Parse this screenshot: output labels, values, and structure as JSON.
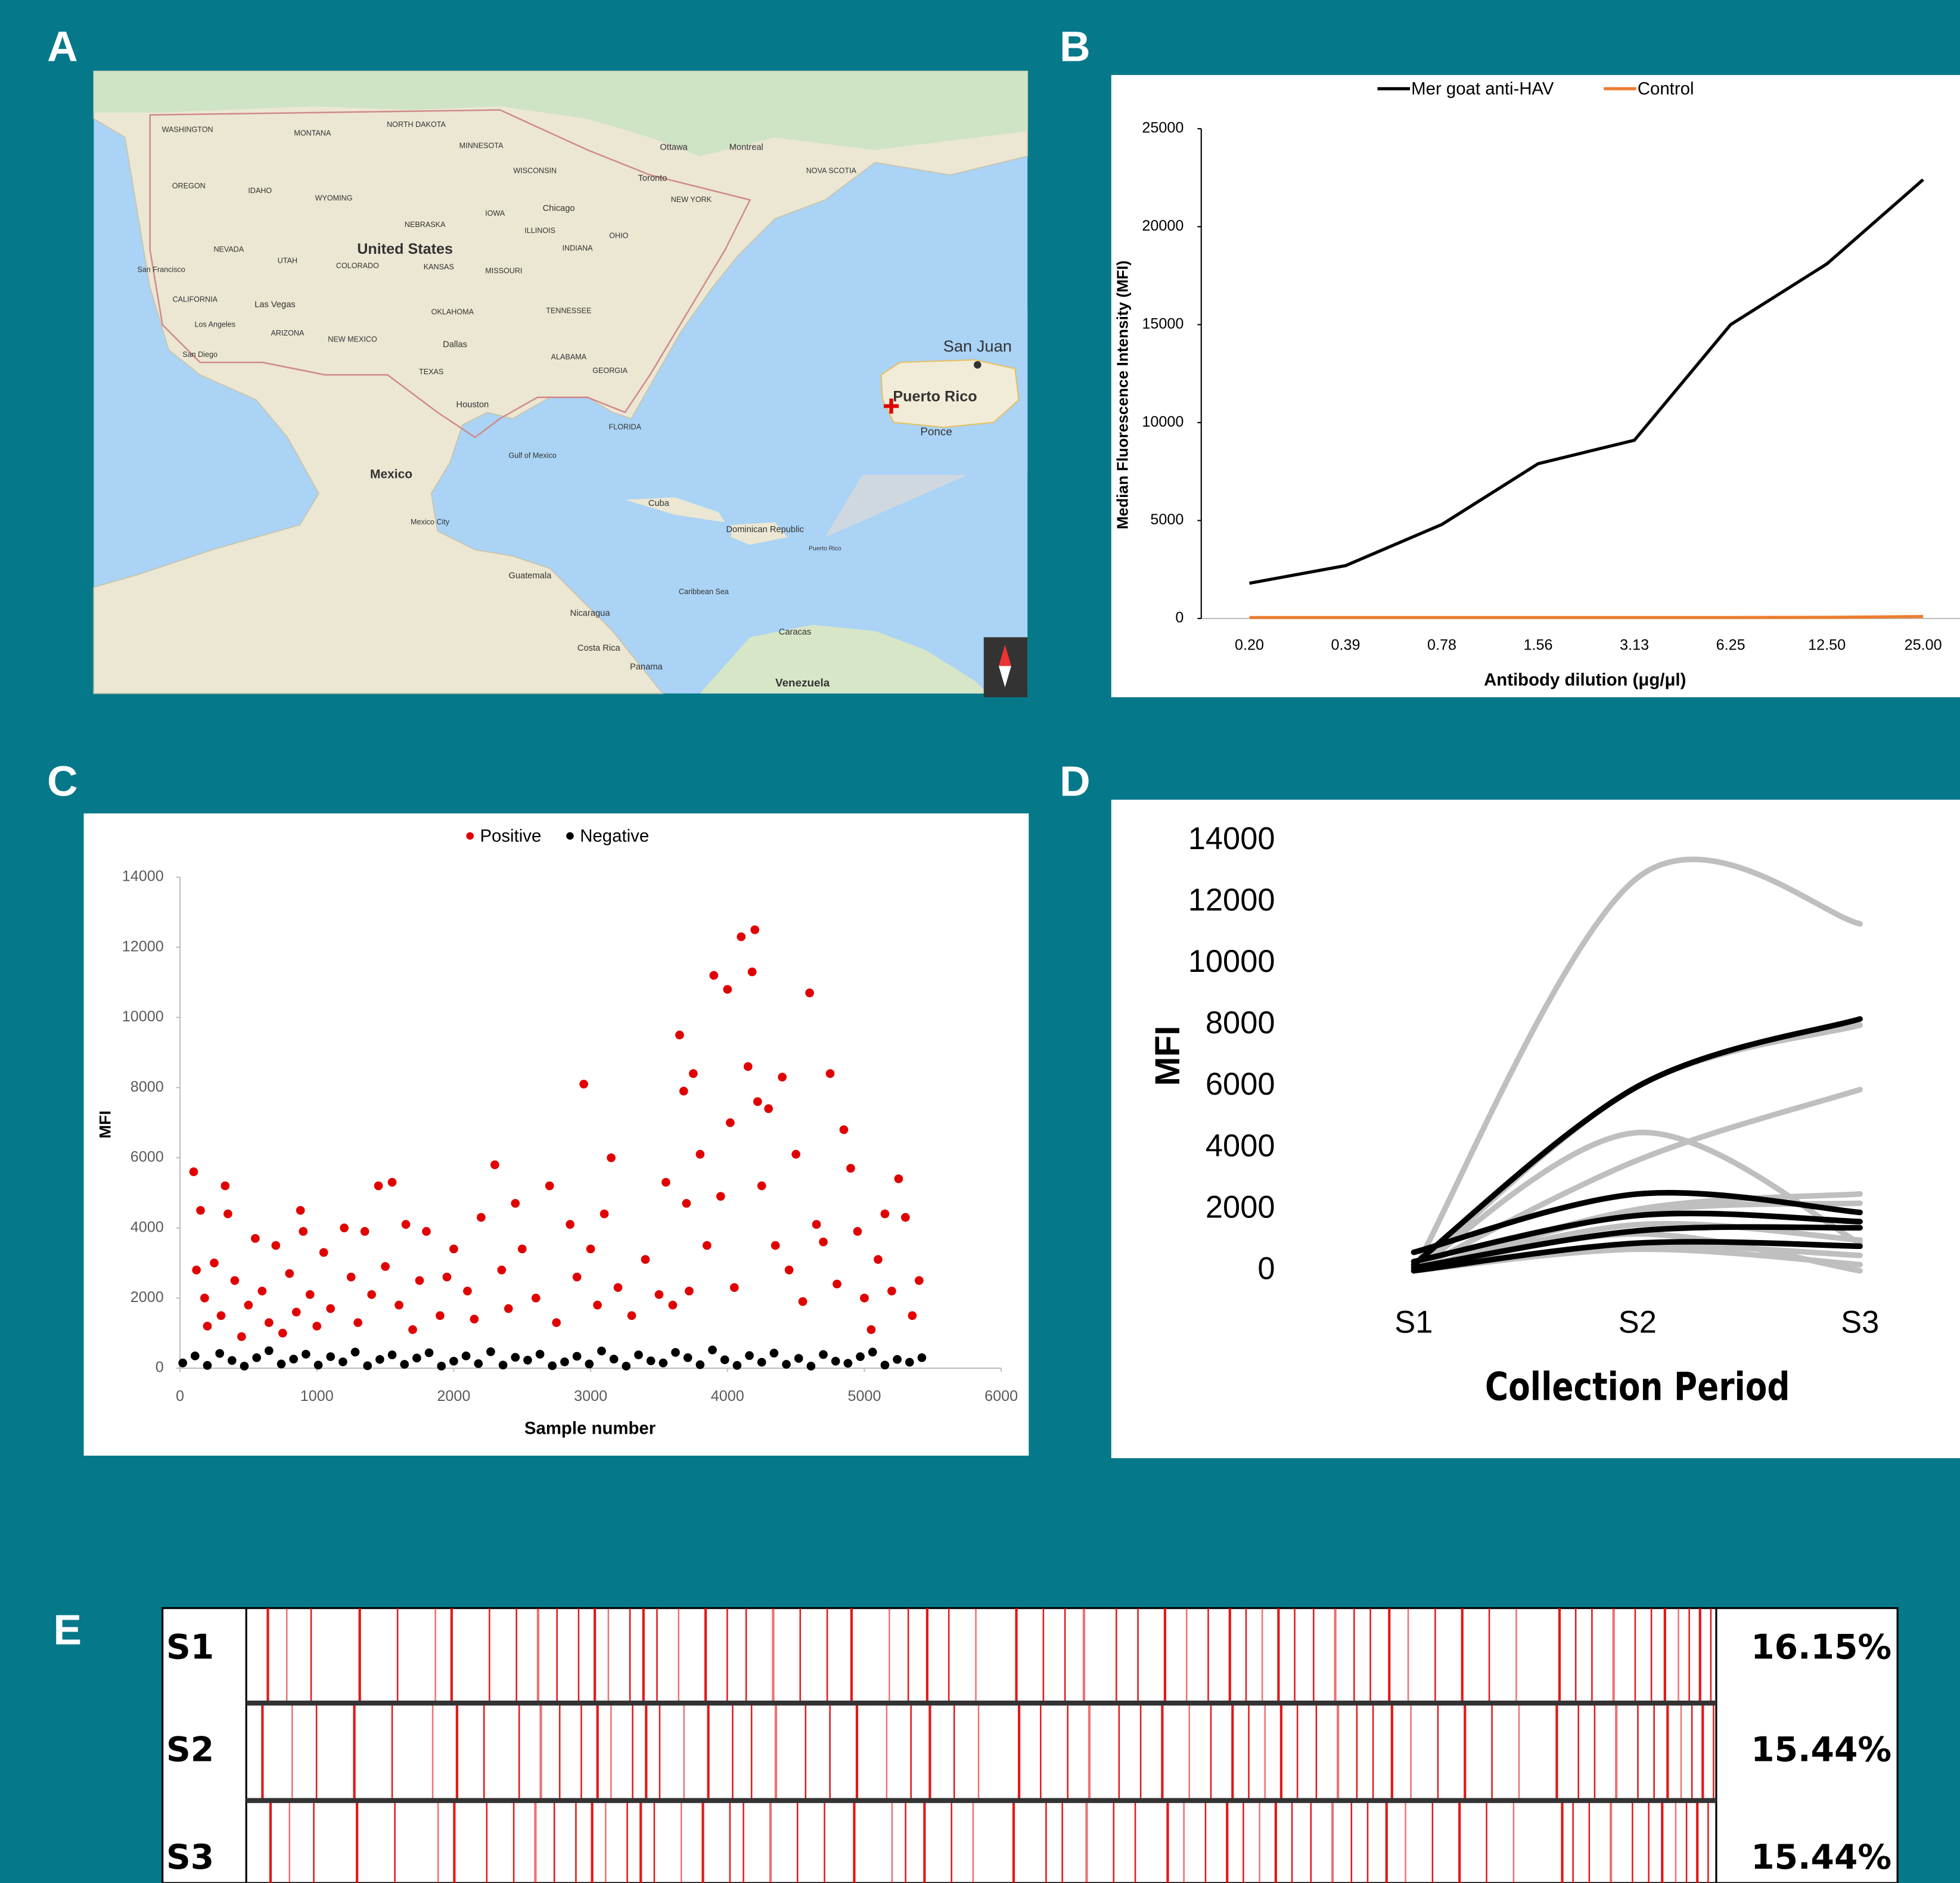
{
  "panel_labels": [
    "A",
    "B",
    "C",
    "D",
    "E"
  ],
  "map": {
    "labels": [
      "United States",
      "Mexico",
      "Cuba",
      "Dominican Republic",
      "Puerto Rico",
      "San Juan",
      "Puerto Rico",
      "Ponce",
      "Gulf of Mexico",
      "Caribbean Sea",
      "Guatemala",
      "Nicaragua",
      "Costa Rica",
      "Panama",
      "Caracas",
      "Venezuela",
      "Houston",
      "Dallas",
      "Mexico City",
      "Chicago",
      "Toronto",
      "Ottawa",
      "Montreal",
      "San Francisco",
      "Los Angeles",
      "San Diego",
      "Las Vegas",
      "WASHINGTON",
      "MONTANA",
      "NORTH DAKOTA",
      "OREGON",
      "IDAHO",
      "WYOMING",
      "NEVADA",
      "UTAH",
      "COLORADO",
      "KANSAS",
      "CALIFORNIA",
      "ARIZONA",
      "NEW MEXICO",
      "TEXAS",
      "OKLAHOMA",
      "MISSOURI",
      "IOWA",
      "NEBRASKA",
      "MINNESOTA",
      "WISCONSIN",
      "ILLINOIS",
      "INDIANA",
      "OHIO",
      "TENNESSEE",
      "ALABAMA",
      "GEORGIA",
      "FLORIDA",
      "NEW YORK",
      "NOVA SCOTIA"
    ]
  },
  "chart_data": [
    {
      "type": "line",
      "categories": [
        "0.20",
        "0.39",
        "0.78",
        "1.56",
        "3.13",
        "6.25",
        "12.50",
        "25.00"
      ],
      "series": [
        {
          "name": "Mer goat anti-HAV",
          "color": "#000000",
          "values": [
            1800,
            2700,
            4800,
            7900,
            9100,
            15000,
            18100,
            22400
          ]
        },
        {
          "name": "Control",
          "color": "#ed7d31",
          "values": [
            50,
            50,
            50,
            50,
            50,
            50,
            60,
            100
          ]
        }
      ],
      "ylim": [
        0,
        25000
      ],
      "yticks": [
        0,
        5000,
        10000,
        15000,
        20000,
        25000
      ],
      "y_label": "Median Fluorescence Intensity (MFI)",
      "x_label": "Antibody dilution (μg/μl)"
    },
    {
      "type": "scatter",
      "x_label": "Sample number",
      "y_label": "MFI",
      "xlim": [
        0,
        6000
      ],
      "xticks": [
        0,
        1000,
        2000,
        3000,
        4000,
        5000,
        6000
      ],
      "ylim": [
        0,
        14000
      ],
      "yticks": [
        0,
        2000,
        4000,
        6000,
        8000,
        10000,
        12000,
        14000
      ],
      "series": [
        {
          "name": "Positive",
          "color": "#e00000",
          "x": [
            100,
            120,
            150,
            180,
            200,
            250,
            300,
            330,
            350,
            400,
            450,
            500,
            550,
            600,
            650,
            700,
            750,
            800,
            850,
            880,
            900,
            950,
            1000,
            1050,
            1100,
            1200,
            1250,
            1300,
            1350,
            1400,
            1450,
            1500,
            1550,
            1600,
            1650,
            1700,
            1750,
            1800,
            1900,
            1950,
            2000,
            2100,
            2150,
            2200,
            2300,
            2350,
            2400,
            2450,
            2500,
            2600,
            2700,
            2750,
            2850,
            2900,
            2950,
            3000,
            3050,
            3100,
            3150,
            3200,
            3300,
            3400,
            3500,
            3550,
            3600,
            3650,
            3680,
            3700,
            3720,
            3750,
            3800,
            3850,
            3900,
            3950,
            4000,
            4020,
            4050,
            4100,
            4150,
            4180,
            4200,
            4220,
            4250,
            4300,
            4350,
            4400,
            4450,
            4500,
            4550,
            4600,
            4650,
            4700,
            4750,
            4800,
            4850,
            4900,
            4950,
            5000,
            5050,
            5100,
            5150,
            5200,
            5250,
            5300,
            5350,
            5400
          ],
          "values": [
            5600,
            2800,
            4500,
            2000,
            1200,
            3000,
            1500,
            5200,
            4400,
            2500,
            900,
            1800,
            3700,
            2200,
            1300,
            3500,
            1000,
            2700,
            1600,
            4500,
            3900,
            2100,
            1200,
            3300,
            1700,
            4000,
            2600,
            1300,
            3900,
            2100,
            5200,
            2900,
            5300,
            1800,
            4100,
            1100,
            2500,
            3900,
            1500,
            2600,
            3400,
            2200,
            1400,
            4300,
            5800,
            2800,
            1700,
            4700,
            3400,
            2000,
            5200,
            1300,
            4100,
            2600,
            8100,
            3400,
            1800,
            4400,
            6000,
            2300,
            1500,
            3100,
            2100,
            5300,
            1800,
            9500,
            7900,
            4700,
            2200,
            8400,
            6100,
            3500,
            11200,
            4900,
            10800,
            7000,
            2300,
            12300,
            8600,
            11300,
            12500,
            7600,
            5200,
            7400,
            3500,
            8300,
            2800,
            6100,
            1900,
            10700,
            4100,
            3600,
            8400,
            2400,
            6800,
            5700,
            3900,
            2000,
            1100,
            3100,
            4400,
            2200,
            5400,
            4300,
            1500,
            2500
          ]
        },
        {
          "name": "Negative",
          "color": "#000000",
          "x": [
            20,
            110,
            200,
            290,
            380,
            470,
            560,
            650,
            740,
            830,
            920,
            1010,
            1100,
            1190,
            1280,
            1370,
            1460,
            1550,
            1640,
            1730,
            1820,
            1910,
            2000,
            2090,
            2180,
            2270,
            2360,
            2450,
            2540,
            2630,
            2720,
            2810,
            2900,
            2990,
            3080,
            3170,
            3260,
            3350,
            3440,
            3530,
            3620,
            3710,
            3800,
            3890,
            3980,
            4070,
            4160,
            4250,
            4340,
            4430,
            4520,
            4610,
            4700,
            4790,
            4880,
            4970,
            5060,
            5150,
            5240,
            5330,
            5420
          ],
          "values": [
            150,
            350,
            80,
            420,
            220,
            60,
            300,
            500,
            120,
            260,
            400,
            90,
            330,
            180,
            460,
            70,
            250,
            380,
            110,
            290,
            440,
            60,
            200,
            350,
            130,
            470,
            90,
            310,
            230,
            400,
            70,
            180,
            340,
            120,
            490,
            260,
            60,
            380,
            210,
            150,
            450,
            300,
            100,
            520,
            240,
            80,
            360,
            170,
            430,
            110,
            280,
            60,
            390,
            200,
            140,
            330,
            460,
            90,
            250,
            170,
            300
          ]
        }
      ]
    },
    {
      "type": "smooth-line",
      "categories": [
        "S1",
        "S2",
        "S3"
      ],
      "x_label": "Collection Period",
      "y_label": "MFI",
      "ylim": [
        0,
        14000
      ],
      "yticks": [
        0,
        2000,
        4000,
        6000,
        8000,
        10000,
        12000,
        14000
      ],
      "series": [
        {
          "color": "#bfbfbf",
          "values": [
            0,
            12800,
            11300
          ]
        },
        {
          "color": "#bfbfbf",
          "values": [
            0,
            6000,
            8000
          ]
        },
        {
          "color": "#bfbfbf",
          "values": [
            0,
            4500,
            900
          ]
        },
        {
          "color": "#bfbfbf",
          "values": [
            0,
            3600,
            5900
          ]
        },
        {
          "color": "#bfbfbf",
          "values": [
            0,
            2000,
            2500
          ]
        },
        {
          "color": "#bfbfbf",
          "values": [
            0,
            1900,
            2200
          ]
        },
        {
          "color": "#bfbfbf",
          "values": [
            0,
            1500,
            1000
          ]
        },
        {
          "color": "#bfbfbf",
          "values": [
            0,
            800,
            500
          ]
        },
        {
          "color": "#bfbfbf",
          "values": [
            0,
            1200,
            0
          ]
        },
        {
          "color": "#bfbfbf",
          "values": [
            0,
            700,
            200
          ]
        },
        {
          "color": "#000000",
          "values": [
            200,
            6000,
            8200
          ]
        },
        {
          "color": "#000000",
          "values": [
            600,
            2500,
            1900
          ]
        },
        {
          "color": "#000000",
          "values": [
            300,
            1800,
            1600
          ]
        },
        {
          "color": "#000000",
          "values": [
            100,
            1300,
            1400
          ]
        },
        {
          "color": "#000000",
          "values": [
            0,
            900,
            800
          ]
        }
      ]
    },
    {
      "type": "strip",
      "categories": [
        "S1",
        "S2",
        "S3"
      ],
      "values": [
        16.15,
        15.44,
        15.44
      ],
      "value_labels": [
        "16.15%",
        "15.44%",
        "15.44%"
      ],
      "xlim": [
        0,
        5440
      ],
      "color": "#e00000",
      "positives": [
        [
          80,
          150,
          240,
          420,
          560,
          700,
          760,
          900,
          1000,
          1080,
          1150,
          1230,
          1290,
          1340,
          1420,
          1470,
          1520,
          1600,
          1700,
          1780,
          1850,
          1950,
          2050,
          2150,
          2240,
          2380,
          2450,
          2520,
          2600,
          2700,
          2850,
          2950,
          3030,
          3100,
          3220,
          3300,
          3400,
          3480,
          3560,
          3640,
          3700,
          3760,
          3820,
          3880,
          3950,
          4030,
          4100,
          4160,
          4230,
          4300,
          4400,
          4500,
          4600,
          4700,
          4860,
          4920,
          4980,
          5060,
          5140,
          5200,
          5250,
          5300,
          5340,
          5380,
          5420
        ],
        [
          60,
          170,
          260,
          400,
          540,
          690,
          780,
          880,
          1010,
          1090,
          1160,
          1240,
          1300,
          1350,
          1430,
          1480,
          1530,
          1620,
          1710,
          1800,
          1870,
          1960,
          2070,
          2160,
          2260,
          2370,
          2460,
          2530,
          2620,
          2710,
          2860,
          2940,
          3040,
          3120,
          3230,
          3310,
          3390,
          3490,
          3570,
          3650,
          3710,
          3770,
          3830,
          3890,
          3960,
          4040,
          4110,
          4170,
          4240,
          4310,
          4410,
          4510,
          4610,
          4710,
          4850,
          4930,
          4990,
          5070,
          5150,
          5210,
          5260,
          5310,
          5350,
          5390,
          5430
        ],
        [
          90,
          160,
          250,
          410,
          550,
          710,
          770,
          890,
          990,
          1070,
          1140,
          1220,
          1280,
          1330,
          1410,
          1460,
          1510,
          1610,
          1690,
          1790,
          1840,
          1940,
          2040,
          2140,
          2250,
          2390,
          2440,
          2510,
          2610,
          2690,
          2840,
          2960,
          3020,
          3110,
          3210,
          3290,
          3410,
          3470,
          3550,
          3630,
          3690,
          3750,
          3810,
          3870,
          3940,
          4020,
          4090,
          4150,
          4220,
          4290,
          4390,
          4490,
          4590,
          4690,
          4870,
          4910,
          4970,
          5050,
          5130,
          5190,
          5240,
          5290,
          5330,
          5370,
          5410
        ]
      ]
    }
  ]
}
